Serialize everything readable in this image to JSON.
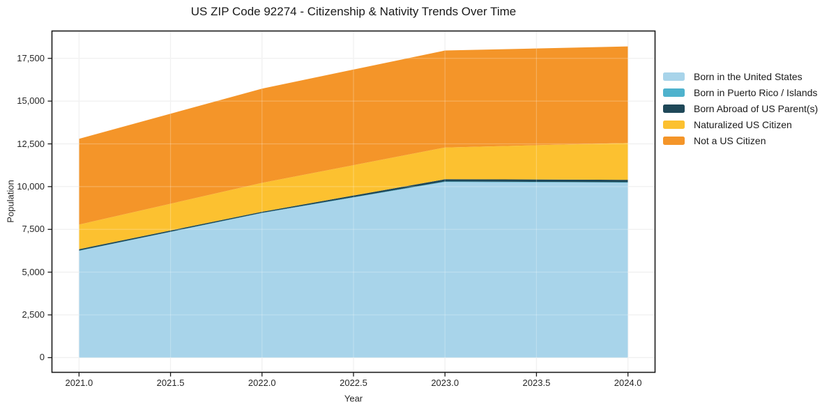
{
  "chart_data": {
    "type": "area",
    "stacked": true,
    "title": "US ZIP Code 92274 - Citizenship & Nativity Trends Over Time",
    "xlabel": "Year",
    "ylabel": "Population",
    "x": [
      2021,
      2022,
      2023,
      2024
    ],
    "series": [
      {
        "name": "Born in the United States",
        "color": "#a8d4ea",
        "values": [
          6240,
          8450,
          10270,
          10230
        ]
      },
      {
        "name": "Born in Puerto Rico / Islands",
        "color": "#4eb2cd",
        "values": [
          20,
          20,
          30,
          30
        ]
      },
      {
        "name": "Born Abroad of US Parent(s)",
        "color": "#1f4858",
        "values": [
          80,
          60,
          130,
          140
        ]
      },
      {
        "name": "Naturalized US Citizen",
        "color": "#fcc130",
        "values": [
          1440,
          1690,
          1860,
          2150
        ]
      },
      {
        "name": "Not a US Citizen",
        "color": "#f49529",
        "values": [
          5020,
          5510,
          5670,
          5650
        ]
      }
    ],
    "stacked_totals": [
      12800,
      15730,
      17960,
      18200
    ],
    "x_ticks": [
      2021.0,
      2021.5,
      2022.0,
      2022.5,
      2023.0,
      2023.5,
      2024.0
    ],
    "x_tick_labels": [
      "2021.0",
      "2021.5",
      "2022.0",
      "2022.5",
      "2023.0",
      "2023.5",
      "2024.0"
    ],
    "y_ticks": [
      0,
      2500,
      5000,
      7500,
      10000,
      12500,
      15000,
      17500
    ],
    "y_tick_labels": [
      "0",
      "2,500",
      "5,000",
      "7,500",
      "10,000",
      "12,500",
      "15,000",
      "17,500"
    ],
    "x_range": [
      2020.85,
      2024.15
    ],
    "y_range": [
      -880,
      19120
    ],
    "grid": true,
    "legend_position": "right-outside",
    "colors": {
      "spine": "#1a1a1a",
      "grid_under": "#ececec",
      "grid_over_alpha": "rgba(255,255,255,0.24)",
      "tick_text": "#262626"
    }
  }
}
